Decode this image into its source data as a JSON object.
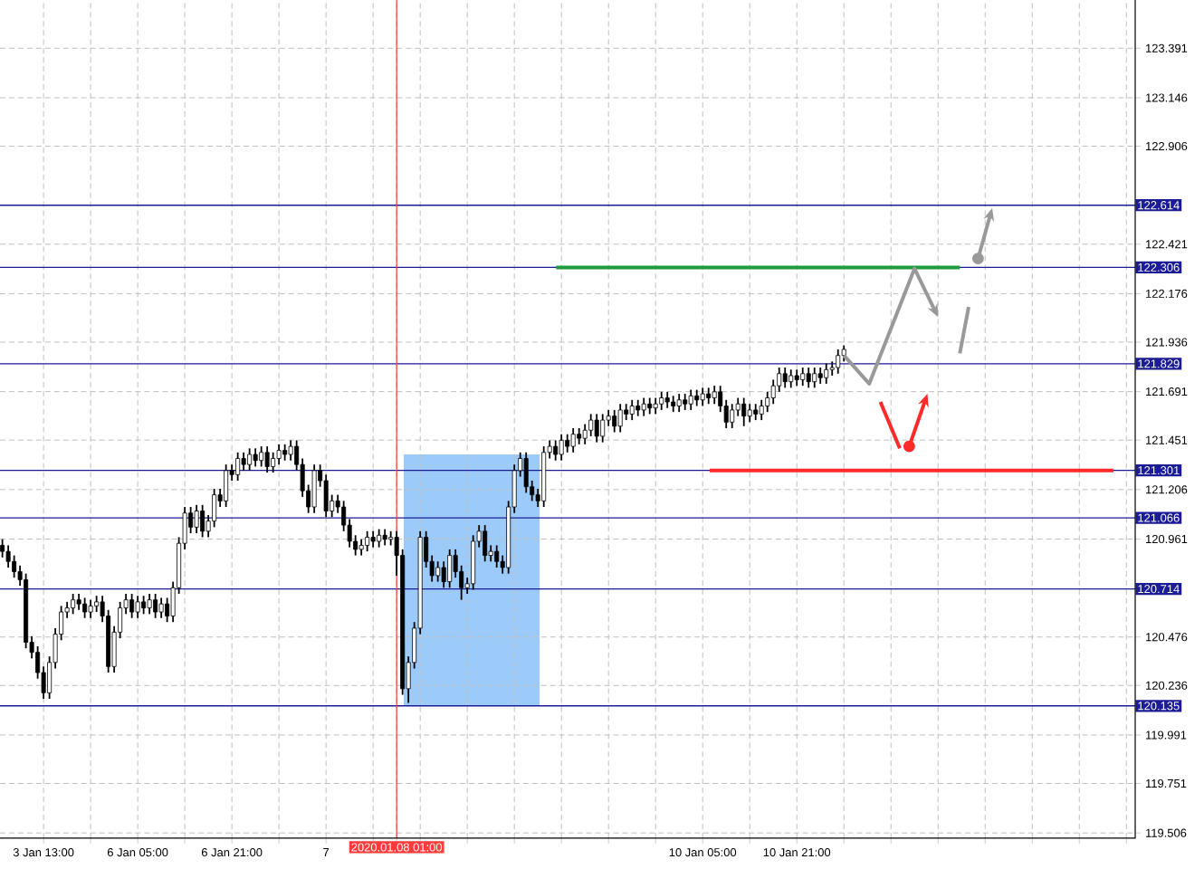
{
  "chart_data": {
    "type": "candlestick",
    "categories": [
      null,
      null,
      null,
      null,
      null,
      null,
      null,
      "3 Jan 13:00",
      null,
      null,
      null,
      null,
      null,
      null,
      null,
      null,
      null,
      null,
      null,
      null,
      null,
      null,
      null,
      "6 Jan 05:00",
      null,
      null,
      null,
      null,
      null,
      null,
      null,
      null,
      null,
      null,
      null,
      null,
      null,
      null,
      null,
      "6 Jan 21:00",
      null,
      null,
      null,
      null,
      null,
      null,
      null,
      null,
      null,
      null,
      null,
      null,
      null,
      null,
      null,
      "7",
      null,
      null,
      null,
      null,
      null,
      null,
      null,
      null,
      null,
      null,
      null,
      "2020.01.08 01:00",
      null,
      null,
      null,
      null,
      null,
      null,
      null,
      null,
      null,
      null,
      null,
      null,
      null,
      null,
      null,
      null,
      null,
      null,
      null,
      null,
      null,
      null,
      null,
      null,
      null,
      null,
      null,
      null,
      null,
      null,
      null,
      null,
      null,
      null,
      null,
      null,
      null,
      null,
      null,
      null,
      null,
      null,
      null,
      null,
      null,
      null,
      null,
      null,
      null,
      null,
      null,
      "10 Jan 05:00",
      null,
      null,
      null,
      null,
      null,
      null,
      null,
      null,
      null,
      null,
      null,
      null,
      null,
      null,
      null,
      "10 Jan 21:00",
      null,
      null,
      null,
      null,
      null,
      null,
      null,
      null,
      null,
      null,
      null,
      null,
      null,
      null,
      null,
      null,
      null,
      null,
      null,
      null,
      null,
      null,
      null,
      null,
      null,
      null,
      null,
      null,
      null,
      null,
      null,
      null,
      null,
      null,
      null,
      null,
      null,
      null,
      null,
      null,
      null,
      null,
      null,
      null,
      null,
      null,
      null,
      null,
      null,
      null,
      null,
      null,
      null,
      null,
      null,
      null,
      null
    ],
    "ohlc": [
      [
        120.93,
        120.96,
        120.87,
        120.9
      ],
      [
        120.9,
        120.93,
        120.82,
        120.85
      ],
      [
        120.85,
        120.88,
        120.77,
        120.8
      ],
      [
        120.8,
        120.83,
        120.73,
        120.76
      ],
      [
        120.76,
        120.79,
        120.42,
        120.45
      ],
      [
        120.45,
        120.48,
        120.37,
        120.4
      ],
      [
        120.4,
        120.43,
        120.27,
        120.3
      ],
      [
        120.3,
        120.33,
        120.17,
        120.2
      ],
      [
        120.2,
        120.38,
        120.17,
        120.35
      ],
      [
        120.35,
        120.52,
        120.32,
        120.49
      ],
      [
        120.49,
        120.63,
        120.46,
        120.6
      ],
      [
        120.6,
        120.65,
        120.57,
        120.62
      ],
      [
        120.62,
        120.69,
        120.59,
        120.66
      ],
      [
        120.66,
        120.69,
        120.61,
        120.64
      ],
      [
        120.64,
        120.67,
        120.57,
        120.6
      ],
      [
        120.6,
        120.66,
        120.57,
        120.63
      ],
      [
        120.63,
        120.68,
        120.6,
        120.65
      ],
      [
        120.65,
        120.68,
        120.55,
        120.58
      ],
      [
        120.58,
        120.61,
        120.3,
        120.33
      ],
      [
        120.33,
        120.53,
        120.3,
        120.5
      ],
      [
        120.5,
        120.65,
        120.47,
        120.62
      ],
      [
        120.62,
        120.69,
        120.59,
        120.66
      ],
      [
        120.66,
        120.69,
        120.57,
        120.6
      ],
      [
        120.6,
        120.68,
        120.57,
        120.65
      ],
      [
        120.65,
        120.68,
        120.59,
        120.62
      ],
      [
        120.62,
        120.69,
        120.59,
        120.66
      ],
      [
        120.66,
        120.69,
        120.57,
        120.6
      ],
      [
        120.6,
        120.67,
        120.57,
        120.64
      ],
      [
        120.64,
        120.67,
        120.55,
        120.58
      ],
      [
        120.58,
        120.75,
        120.55,
        120.72
      ],
      [
        120.72,
        120.97,
        120.69,
        120.94
      ],
      [
        120.94,
        121.12,
        120.91,
        121.09
      ],
      [
        121.09,
        121.12,
        120.99,
        121.02
      ],
      [
        121.02,
        121.13,
        120.99,
        121.1
      ],
      [
        121.1,
        121.13,
        120.97,
        121.0
      ],
      [
        121.0,
        121.08,
        120.97,
        121.05
      ],
      [
        121.05,
        121.21,
        121.02,
        121.18
      ],
      [
        121.18,
        121.21,
        121.12,
        121.15
      ],
      [
        121.15,
        121.33,
        121.12,
        121.3
      ],
      [
        121.3,
        121.33,
        121.25,
        121.28
      ],
      [
        121.28,
        121.39,
        121.25,
        121.36
      ],
      [
        121.36,
        121.39,
        121.3,
        121.33
      ],
      [
        121.33,
        121.41,
        121.3,
        121.38
      ],
      [
        121.38,
        121.41,
        121.32,
        121.35
      ],
      [
        121.35,
        121.42,
        121.32,
        121.39
      ],
      [
        121.39,
        121.42,
        121.29,
        121.32
      ],
      [
        121.32,
        121.39,
        121.29,
        121.36
      ],
      [
        121.36,
        121.43,
        121.33,
        121.4
      ],
      [
        121.4,
        121.43,
        121.35,
        121.38
      ],
      [
        121.38,
        121.45,
        121.35,
        121.42
      ],
      [
        121.42,
        121.45,
        121.3,
        121.33
      ],
      [
        121.33,
        121.36,
        121.17,
        121.2
      ],
      [
        121.2,
        121.23,
        121.09,
        121.12
      ],
      [
        121.12,
        121.33,
        121.09,
        121.3
      ],
      [
        121.3,
        121.33,
        121.22,
        121.25
      ],
      [
        121.25,
        121.28,
        121.07,
        121.1
      ],
      [
        121.1,
        121.18,
        121.07,
        121.15
      ],
      [
        121.15,
        121.18,
        121.09,
        121.12
      ],
      [
        121.12,
        121.15,
        121.0,
        121.03
      ],
      [
        121.03,
        121.06,
        120.92,
        120.95
      ],
      [
        120.95,
        120.98,
        120.88,
        120.91
      ],
      [
        120.91,
        120.96,
        120.88,
        120.93
      ],
      [
        120.93,
        121.0,
        120.9,
        120.97
      ],
      [
        120.97,
        121.0,
        120.92,
        120.95
      ],
      [
        120.95,
        121.01,
        120.92,
        120.98
      ],
      [
        120.98,
        121.01,
        120.93,
        120.96
      ],
      [
        120.96,
        121.0,
        120.93,
        120.97
      ],
      [
        120.97,
        121.0,
        120.78,
        120.88
      ],
      [
        120.88,
        120.91,
        120.19,
        120.22
      ],
      [
        120.22,
        120.38,
        120.15,
        120.35
      ],
      [
        120.35,
        120.55,
        120.32,
        120.52
      ],
      [
        120.52,
        121.0,
        120.49,
        120.97
      ],
      [
        120.97,
        121.0,
        120.82,
        120.85
      ],
      [
        120.85,
        120.88,
        120.75,
        120.78
      ],
      [
        120.78,
        120.85,
        120.75,
        120.82
      ],
      [
        120.82,
        120.85,
        120.72,
        120.75
      ],
      [
        120.75,
        120.91,
        120.72,
        120.88
      ],
      [
        120.88,
        120.91,
        120.77,
        120.8
      ],
      [
        120.8,
        120.83,
        120.66,
        120.72
      ],
      [
        120.72,
        120.77,
        120.69,
        120.74
      ],
      [
        120.74,
        120.98,
        120.71,
        120.95
      ],
      [
        120.95,
        121.03,
        120.92,
        121.0
      ],
      [
        121.0,
        121.03,
        120.85,
        120.88
      ],
      [
        120.88,
        120.93,
        120.85,
        120.9
      ],
      [
        120.9,
        120.93,
        120.82,
        120.85
      ],
      [
        120.85,
        120.88,
        120.79,
        120.82
      ],
      [
        120.82,
        121.15,
        120.79,
        121.12
      ],
      [
        121.12,
        121.33,
        121.09,
        121.3
      ],
      [
        121.3,
        121.39,
        121.27,
        121.36
      ],
      [
        121.36,
        121.39,
        121.19,
        121.22
      ],
      [
        121.22,
        121.25,
        121.15,
        121.18
      ],
      [
        121.18,
        121.21,
        121.12,
        121.15
      ],
      [
        121.15,
        121.42,
        121.12,
        121.39
      ],
      [
        121.39,
        121.45,
        121.36,
        121.42
      ],
      [
        121.42,
        121.45,
        121.35,
        121.38
      ],
      [
        121.38,
        121.48,
        121.35,
        121.45
      ],
      [
        121.45,
        121.48,
        121.39,
        121.42
      ],
      [
        121.42,
        121.51,
        121.39,
        121.48
      ],
      [
        121.48,
        121.51,
        121.43,
        121.46
      ],
      [
        121.46,
        121.53,
        121.43,
        121.5
      ],
      [
        121.5,
        121.58,
        121.47,
        121.55
      ],
      [
        121.55,
        121.58,
        121.44,
        121.47
      ],
      [
        121.47,
        121.58,
        121.44,
        121.55
      ],
      [
        121.55,
        121.6,
        121.52,
        121.57
      ],
      [
        121.57,
        121.6,
        121.49,
        121.52
      ],
      [
        121.52,
        121.63,
        121.49,
        121.6
      ],
      [
        121.6,
        121.63,
        121.55,
        121.58
      ],
      [
        121.58,
        121.65,
        121.55,
        121.62
      ],
      [
        121.62,
        121.65,
        121.57,
        121.6
      ],
      [
        121.6,
        121.66,
        121.57,
        121.63
      ],
      [
        121.63,
        121.66,
        121.58,
        121.61
      ],
      [
        121.61,
        121.66,
        121.58,
        121.63
      ],
      [
        121.63,
        121.69,
        121.6,
        121.66
      ],
      [
        121.66,
        121.69,
        121.61,
        121.64
      ],
      [
        121.64,
        121.67,
        121.59,
        121.62
      ],
      [
        121.62,
        121.68,
        121.59,
        121.65
      ],
      [
        121.65,
        121.68,
        121.6,
        121.63
      ],
      [
        121.63,
        121.7,
        121.6,
        121.67
      ],
      [
        121.67,
        121.7,
        121.62,
        121.65
      ],
      [
        121.65,
        121.71,
        121.62,
        121.68
      ],
      [
        121.68,
        121.71,
        121.63,
        121.66
      ],
      [
        121.66,
        121.72,
        121.63,
        121.69
      ],
      [
        121.69,
        121.72,
        121.59,
        121.62
      ],
      [
        121.62,
        121.65,
        121.51,
        121.54
      ],
      [
        121.54,
        121.63,
        121.51,
        121.6
      ],
      [
        121.6,
        121.66,
        121.57,
        121.63
      ],
      [
        121.63,
        121.66,
        121.52,
        121.57
      ],
      [
        121.57,
        121.63,
        121.54,
        121.6
      ],
      [
        121.6,
        121.63,
        121.55,
        121.58
      ],
      [
        121.58,
        121.65,
        121.55,
        121.62
      ],
      [
        121.62,
        121.69,
        121.59,
        121.66
      ],
      [
        121.66,
        121.75,
        121.63,
        121.72
      ],
      [
        121.72,
        121.81,
        121.69,
        121.78
      ],
      [
        121.78,
        121.81,
        121.71,
        121.74
      ],
      [
        121.74,
        121.8,
        121.71,
        121.77
      ],
      [
        121.77,
        121.8,
        121.72,
        121.75
      ],
      [
        121.75,
        121.81,
        121.72,
        121.78
      ],
      [
        121.78,
        121.81,
        121.71,
        121.74
      ],
      [
        121.74,
        121.81,
        121.71,
        121.78
      ],
      [
        121.78,
        121.81,
        121.73,
        121.76
      ],
      [
        121.76,
        121.83,
        121.73,
        121.8
      ],
      [
        121.8,
        121.84,
        121.77,
        121.81
      ],
      [
        121.81,
        121.9,
        121.78,
        121.87
      ],
      [
        121.87,
        121.92,
        121.84,
        121.9
      ],
      null,
      null,
      null,
      null,
      null,
      null,
      null,
      null,
      null,
      null,
      null,
      null,
      null,
      null,
      null,
      null,
      null,
      null,
      null,
      null,
      null,
      null,
      null,
      null,
      null,
      null,
      null,
      null,
      null,
      null,
      null,
      null,
      null,
      null,
      null,
      null,
      null,
      null,
      null,
      null,
      null,
      null,
      null,
      null,
      null,
      null,
      null,
      null,
      null
    ],
    "ylim": [
      119.48,
      123.63
    ],
    "yticks": [
      119.506,
      119.751,
      119.991,
      120.236,
      120.476,
      120.961,
      121.206,
      121.451,
      121.691,
      121.936,
      122.176,
      122.421,
      122.906,
      123.146,
      123.391
    ],
    "grid": true,
    "ref_lines": [
      {
        "axis": "y",
        "value": 122.614,
        "label": "122.614",
        "color": "#1c1c96"
      },
      {
        "axis": "y",
        "value": 122.306,
        "label": "122.306",
        "color": "#1c1c96"
      },
      {
        "axis": "y",
        "value": 121.829,
        "label": "121.829",
        "color": "#1c1c96"
      },
      {
        "axis": "y",
        "value": 121.301,
        "label": "121.301",
        "color": "#1c1c96"
      },
      {
        "axis": "y",
        "value": 121.066,
        "label": "121.066",
        "color": "#1c1c96"
      },
      {
        "axis": "y",
        "value": 120.714,
        "label": "120.714",
        "color": "#1c1c96"
      },
      {
        "axis": "y",
        "value": 120.135,
        "label": "120.135",
        "color": "#1c1c96"
      },
      {
        "axis": "x",
        "value": "2020.01.08 01:00",
        "color": "#ff3b3b"
      }
    ]
  }
}
